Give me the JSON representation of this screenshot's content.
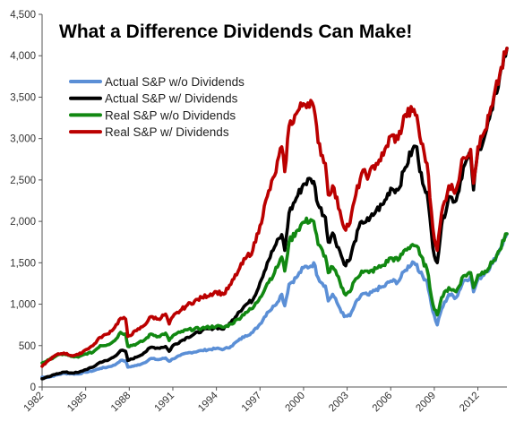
{
  "chart_data": {
    "type": "line",
    "title": "What a Difference Dividends Can Make!",
    "xlabel": "",
    "ylabel": "",
    "xlim": [
      1982,
      2014
    ],
    "ylim": [
      0,
      4500
    ],
    "y_ticks": [
      0,
      500,
      1000,
      1500,
      2000,
      2500,
      3000,
      3500,
      4000,
      4500
    ],
    "y_tick_labels": [
      "0",
      "500",
      "1,000",
      "1,500",
      "2,000",
      "2,500",
      "3,000",
      "3,500",
      "4,000",
      "4,500"
    ],
    "x_ticks": [
      1982,
      1985,
      1988,
      1991,
      1994,
      1997,
      2000,
      2003,
      2006,
      2009,
      2012
    ],
    "x_tick_labels": [
      "1982",
      "1985",
      "1988",
      "1991",
      "1994",
      "1997",
      "2000",
      "2003",
      "2006",
      "2009",
      "2012"
    ],
    "grid": false,
    "legend_position": "top-left",
    "series": [
      {
        "name": "Actual S&P w/o Dividends",
        "color": "#5b8fd6",
        "x": [
          1982.0,
          1982.5,
          1983.0,
          1983.5,
          1984.0,
          1984.5,
          1985.0,
          1985.5,
          1986.0,
          1986.5,
          1987.0,
          1987.4,
          1987.75,
          1987.9,
          1988.5,
          1989.0,
          1989.5,
          1990.0,
          1990.5,
          1990.75,
          1991.0,
          1991.5,
          1992.0,
          1993.0,
          1994.0,
          1994.5,
          1995.0,
          1995.5,
          1996.0,
          1996.5,
          1997.0,
          1997.5,
          1998.0,
          1998.5,
          1998.7,
          1999.0,
          1999.5,
          2000.0,
          2000.5,
          2000.7,
          2001.0,
          2001.5,
          2001.7,
          2002.0,
          2002.5,
          2002.8,
          2003.2,
          2003.5,
          2004.0,
          2004.5,
          2005.0,
          2005.5,
          2006.0,
          2006.5,
          2007.0,
          2007.5,
          2007.8,
          2008.0,
          2008.5,
          2008.9,
          2009.2,
          2009.5,
          2010.0,
          2010.5,
          2011.0,
          2011.5,
          2011.7,
          2012.0,
          2012.5,
          2013.0,
          2013.5,
          2014.0
        ],
        "values": [
          118,
          120,
          145,
          165,
          160,
          158,
          180,
          195,
          225,
          240,
          265,
          320,
          315,
          240,
          260,
          290,
          345,
          330,
          350,
          310,
          340,
          380,
          410,
          440,
          465,
          455,
          490,
          560,
          620,
          660,
          760,
          900,
          980,
          1120,
          980,
          1240,
          1320,
          1440,
          1460,
          1500,
          1320,
          1220,
          1040,
          1120,
          950,
          850,
          860,
          980,
          1120,
          1110,
          1180,
          1210,
          1280,
          1270,
          1410,
          1510,
          1480,
          1380,
          1280,
          910,
          750,
          940,
          1120,
          1080,
          1280,
          1330,
          1150,
          1300,
          1380,
          1490,
          1660,
          1850
        ]
      },
      {
        "name": "Actual S&P w/ Dividends",
        "color": "#000000",
        "x": [
          1982.0,
          1982.5,
          1983.0,
          1983.5,
          1984.0,
          1984.5,
          1985.0,
          1985.5,
          1986.0,
          1986.5,
          1987.0,
          1987.4,
          1987.75,
          1987.9,
          1988.5,
          1989.0,
          1989.5,
          1990.0,
          1990.5,
          1990.75,
          1991.0,
          1991.5,
          1992.0,
          1993.0,
          1994.0,
          1994.5,
          1995.0,
          1995.5,
          1996.0,
          1996.5,
          1997.0,
          1997.5,
          1998.0,
          1998.5,
          1998.7,
          1999.0,
          1999.5,
          2000.0,
          2000.5,
          2000.7,
          2001.0,
          2001.5,
          2001.7,
          2002.0,
          2002.5,
          2002.8,
          2003.2,
          2003.5,
          2004.0,
          2004.5,
          2005.0,
          2005.5,
          2006.0,
          2006.5,
          2007.0,
          2007.5,
          2007.8,
          2008.0,
          2008.5,
          2008.9,
          2009.2,
          2009.5,
          2010.0,
          2010.5,
          2011.0,
          2011.5,
          2011.7,
          2012.0,
          2012.5,
          2013.0,
          2013.5,
          2014.0
        ],
        "values": [
          100,
          125,
          160,
          180,
          170,
          175,
          210,
          240,
          300,
          320,
          370,
          440,
          430,
          320,
          360,
          410,
          480,
          470,
          490,
          430,
          500,
          550,
          600,
          680,
          720,
          700,
          780,
          900,
          990,
          1050,
          1260,
          1500,
          1690,
          1840,
          1650,
          2100,
          2280,
          2450,
          2510,
          2480,
          2200,
          2050,
          1750,
          1860,
          1640,
          1480,
          1540,
          1750,
          2000,
          2010,
          2130,
          2210,
          2400,
          2380,
          2650,
          2870,
          2900,
          2600,
          2350,
          1680,
          1500,
          1950,
          2300,
          2250,
          2650,
          2800,
          2380,
          2850,
          3050,
          3350,
          3750,
          4090
        ]
      },
      {
        "name": "Real S&P w/o Dividends",
        "color": "#118811",
        "x": [
          1982.0,
          1982.5,
          1983.0,
          1983.5,
          1984.0,
          1984.5,
          1985.0,
          1985.5,
          1986.0,
          1986.5,
          1987.0,
          1987.4,
          1987.75,
          1987.9,
          1988.5,
          1989.0,
          1989.5,
          1990.0,
          1990.5,
          1990.75,
          1991.0,
          1991.5,
          1992.0,
          1993.0,
          1994.0,
          1994.5,
          1995.0,
          1995.5,
          1996.0,
          1996.5,
          1997.0,
          1997.5,
          1998.0,
          1998.5,
          1998.7,
          1999.0,
          1999.5,
          2000.0,
          2000.5,
          2000.7,
          2001.0,
          2001.5,
          2001.7,
          2002.0,
          2002.5,
          2002.8,
          2003.2,
          2003.5,
          2004.0,
          2004.5,
          2005.0,
          2005.5,
          2006.0,
          2006.5,
          2007.0,
          2007.5,
          2007.8,
          2008.0,
          2008.5,
          2008.9,
          2009.2,
          2009.5,
          2010.0,
          2010.5,
          2011.0,
          2011.5,
          2011.7,
          2012.0,
          2012.5,
          2013.0,
          2013.5,
          2014.0
        ],
        "values": [
          290,
          330,
          380,
          400,
          370,
          360,
          400,
          420,
          500,
          510,
          560,
          660,
          640,
          490,
          520,
          560,
          640,
          610,
          650,
          560,
          620,
          660,
          690,
          710,
          735,
          720,
          760,
          820,
          900,
          950,
          1080,
          1250,
          1380,
          1570,
          1400,
          1750,
          1880,
          1990,
          2020,
          2000,
          1720,
          1580,
          1380,
          1450,
          1270,
          1130,
          1150,
          1280,
          1400,
          1380,
          1430,
          1470,
          1560,
          1530,
          1660,
          1720,
          1700,
          1600,
          1420,
          1000,
          870,
          1080,
          1200,
          1150,
          1340,
          1380,
          1200,
          1350,
          1400,
          1500,
          1650,
          1850
        ]
      },
      {
        "name": "Real S&P w/ Dividends",
        "color": "#bb0000",
        "x": [
          1982.0,
          1982.5,
          1983.0,
          1983.5,
          1984.0,
          1984.5,
          1985.0,
          1985.5,
          1986.0,
          1986.5,
          1987.0,
          1987.4,
          1987.75,
          1987.9,
          1988.5,
          1989.0,
          1989.5,
          1990.0,
          1990.5,
          1990.75,
          1991.0,
          1991.5,
          1992.0,
          1993.0,
          1994.0,
          1994.5,
          1995.0,
          1995.5,
          1996.0,
          1996.5,
          1997.0,
          1997.5,
          1998.0,
          1998.5,
          1998.7,
          1999.0,
          1999.5,
          2000.0,
          2000.5,
          2000.7,
          2001.0,
          2001.5,
          2001.7,
          2002.0,
          2002.5,
          2002.8,
          2003.2,
          2003.5,
          2004.0,
          2004.5,
          2005.0,
          2005.5,
          2006.0,
          2006.5,
          2007.0,
          2007.5,
          2007.8,
          2008.0,
          2008.5,
          2008.9,
          2009.2,
          2009.5,
          2010.0,
          2010.5,
          2011.0,
          2011.5,
          2011.7,
          2012.0,
          2012.5,
          2013.0,
          2013.5,
          2014.0
        ],
        "values": [
          250,
          330,
          390,
          410,
          380,
          390,
          450,
          500,
          600,
          640,
          720,
          830,
          820,
          610,
          680,
          740,
          850,
          820,
          880,
          760,
          850,
          920,
          990,
          1080,
          1150,
          1120,
          1240,
          1400,
          1550,
          1650,
          1950,
          2300,
          2550,
          2900,
          2600,
          3150,
          3300,
          3420,
          3460,
          3380,
          2950,
          2700,
          2320,
          2430,
          2130,
          1920,
          1980,
          2250,
          2580,
          2560,
          2700,
          2800,
          3030,
          2990,
          3290,
          3330,
          3280,
          3020,
          2700,
          1920,
          1650,
          2100,
          2430,
          2380,
          2770,
          2870,
          2460,
          2900,
          3100,
          3400,
          3770,
          4090
        ]
      }
    ]
  }
}
